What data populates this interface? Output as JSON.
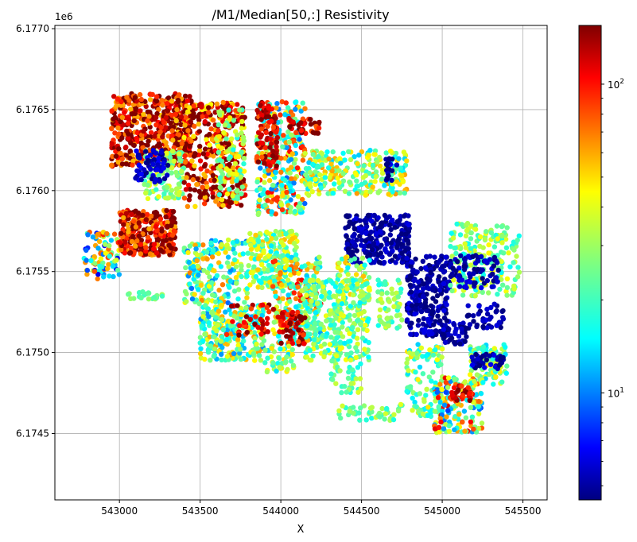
{
  "chart_data": {
    "type": "scatter",
    "title": "/M1/Median[50,:] Resistivity",
    "xlabel": "X",
    "ylabel": "",
    "y_offset_label": "1e6",
    "xlim": [
      542600,
      545650
    ],
    "ylim": [
      6.17409,
      6.17702
    ],
    "x_ticks": [
      {
        "value": 543000,
        "label": "543000"
      },
      {
        "value": 543500,
        "label": "543500"
      },
      {
        "value": 544000,
        "label": "544000"
      },
      {
        "value": 544500,
        "label": "544500"
      },
      {
        "value": 545000,
        "label": "545000"
      },
      {
        "value": 545500,
        "label": "545500"
      }
    ],
    "y_ticks": [
      {
        "value": 6.1745,
        "label": "6.1745"
      },
      {
        "value": 6.175,
        "label": "6.1750"
      },
      {
        "value": 6.1755,
        "label": "6.1755"
      },
      {
        "value": 6.176,
        "label": "6.1760"
      },
      {
        "value": 6.1765,
        "label": "6.1765"
      },
      {
        "value": 6.177,
        "label": "6.1770"
      }
    ],
    "grid": true,
    "colormap": "jet",
    "color_scale": "log",
    "color_range": [
      4.5,
      155
    ],
    "colorbar_ticks": [
      {
        "value": 10,
        "label": "10",
        "exp": "1"
      },
      {
        "value": 100,
        "label": "10",
        "exp": "2"
      }
    ],
    "jet_stops": [
      "#00007f",
      "#0000ff",
      "#00ffff",
      "#7fff7f",
      "#ffff00",
      "#ff0000",
      "#7f0000"
    ],
    "clusters": [
      {
        "x": [
          542950,
          543450
        ],
        "y": [
          6.17615,
          6.1766
        ],
        "value": 120,
        "n": 520,
        "variation": 0.35
      },
      {
        "x": [
          543150,
          543400
        ],
        "y": [
          6.17595,
          6.17625
        ],
        "value": 28,
        "n": 110,
        "variation": 0.2
      },
      {
        "x": [
          543100,
          543300
        ],
        "y": [
          6.17605,
          6.17625
        ],
        "value": 5.5,
        "n": 70,
        "variation": 0.1
      },
      {
        "x": [
          543400,
          543780
        ],
        "y": [
          6.1759,
          6.17655
        ],
        "value": 110,
        "n": 360,
        "variation": 0.4
      },
      {
        "x": [
          543600,
          543780
        ],
        "y": [
          6.17595,
          6.1765
        ],
        "value": 28,
        "n": 90,
        "variation": 0.25
      },
      {
        "x": [
          543850,
          544150
        ],
        "y": [
          6.17585,
          6.17655
        ],
        "value": 32,
        "n": 300,
        "variation": 0.55
      },
      {
        "x": [
          543850,
          543980
        ],
        "y": [
          6.17615,
          6.17655
        ],
        "value": 120,
        "n": 90,
        "variation": 0.2
      },
      {
        "x": [
          544050,
          544250
        ],
        "y": [
          6.17635,
          6.17645
        ],
        "value": 120,
        "n": 35,
        "variation": 0.2
      },
      {
        "x": [
          544150,
          544780
        ],
        "y": [
          6.17597,
          6.17625
        ],
        "value": 28,
        "n": 260,
        "variation": 0.35
      },
      {
        "x": [
          544650,
          544720
        ],
        "y": [
          6.17605,
          6.1762
        ],
        "value": 5,
        "n": 18,
        "variation": 0.1
      },
      {
        "x": [
          542780,
          543000
        ],
        "y": [
          6.17545,
          6.17575
        ],
        "value": 25,
        "n": 90,
        "variation": 0.6
      },
      {
        "x": [
          543000,
          543350
        ],
        "y": [
          6.1756,
          6.17588
        ],
        "value": 115,
        "n": 300,
        "variation": 0.3
      },
      {
        "x": [
          543400,
          543800
        ],
        "y": [
          6.1753,
          6.1757
        ],
        "value": 25,
        "n": 200,
        "variation": 0.45
      },
      {
        "x": [
          543800,
          544100
        ],
        "y": [
          6.1754,
          6.17575
        ],
        "value": 28,
        "n": 200,
        "variation": 0.3
      },
      {
        "x": [
          544400,
          544800
        ],
        "y": [
          6.17555,
          6.17585
        ],
        "value": 5,
        "n": 260,
        "variation": 0.1
      },
      {
        "x": [
          544350,
          544550
        ],
        "y": [
          6.1753,
          6.1756
        ],
        "value": 28,
        "n": 70,
        "variation": 0.3
      },
      {
        "x": [
          544780,
          545050
        ],
        "y": [
          6.1751,
          6.1756
        ],
        "value": 5,
        "n": 240,
        "variation": 0.1
      },
      {
        "x": [
          545050,
          545480
        ],
        "y": [
          6.17535,
          6.1758
        ],
        "value": 26,
        "n": 220,
        "variation": 0.25
      },
      {
        "x": [
          545050,
          545350
        ],
        "y": [
          6.1754,
          6.1756
        ],
        "value": 5,
        "n": 80,
        "variation": 0.1
      },
      {
        "x": [
          543500,
          543900
        ],
        "y": [
          6.17495,
          6.1753
        ],
        "value": 26,
        "n": 250,
        "variation": 0.4
      },
      {
        "x": [
          543950,
          544250
        ],
        "y": [
          6.17505,
          6.1756
        ],
        "value": 35,
        "n": 220,
        "variation": 0.5
      },
      {
        "x": [
          544150,
          544550
        ],
        "y": [
          6.17495,
          6.17545
        ],
        "value": 25,
        "n": 300,
        "variation": 0.25
      },
      {
        "x": [
          544000,
          544150
        ],
        "y": [
          6.17505,
          6.17525
        ],
        "value": 120,
        "n": 60,
        "variation": 0.2
      },
      {
        "x": [
          544600,
          544750
        ],
        "y": [
          6.17515,
          6.17545
        ],
        "value": 25,
        "n": 60,
        "variation": 0.2
      },
      {
        "x": [
          545150,
          545380
        ],
        "y": [
          6.17515,
          6.1753
        ],
        "value": 5,
        "n": 45,
        "variation": 0.1
      },
      {
        "x": [
          545000,
          545150
        ],
        "y": [
          6.17505,
          6.1752
        ],
        "value": 5,
        "n": 35,
        "variation": 0.1
      },
      {
        "x": [
          543900,
          544080
        ],
        "y": [
          6.17488,
          6.17505
        ],
        "value": 26,
        "n": 45,
        "variation": 0.3
      },
      {
        "x": [
          544300,
          544500
        ],
        "y": [
          6.17475,
          6.17495
        ],
        "value": 25,
        "n": 40,
        "variation": 0.2
      },
      {
        "x": [
          544780,
          545000
        ],
        "y": [
          6.1746,
          6.17505
        ],
        "value": 25,
        "n": 110,
        "variation": 0.3
      },
      {
        "x": [
          544950,
          545250
        ],
        "y": [
          6.1745,
          6.17485
        ],
        "value": 30,
        "n": 160,
        "variation": 0.6
      },
      {
        "x": [
          545050,
          545200
        ],
        "y": [
          6.1747,
          6.1748
        ],
        "value": 120,
        "n": 35,
        "variation": 0.2
      },
      {
        "x": [
          545170,
          545400
        ],
        "y": [
          6.1748,
          6.17505
        ],
        "value": 25,
        "n": 110,
        "variation": 0.3
      },
      {
        "x": [
          545170,
          545380
        ],
        "y": [
          6.1749,
          6.175
        ],
        "value": 5,
        "n": 40,
        "variation": 0.1
      },
      {
        "x": [
          543050,
          543300
        ],
        "y": [
          6.17533,
          6.17538
        ],
        "value": 25,
        "n": 25,
        "variation": 0.1
      },
      {
        "x": [
          544350,
          544760
        ],
        "y": [
          6.17458,
          6.17468
        ],
        "value": 25,
        "n": 45,
        "variation": 0.2
      },
      {
        "x": [
          543650,
          544000
        ],
        "y": [
          6.1751,
          6.1753
        ],
        "value": 120,
        "n": 45,
        "variation": 0.2
      }
    ]
  }
}
